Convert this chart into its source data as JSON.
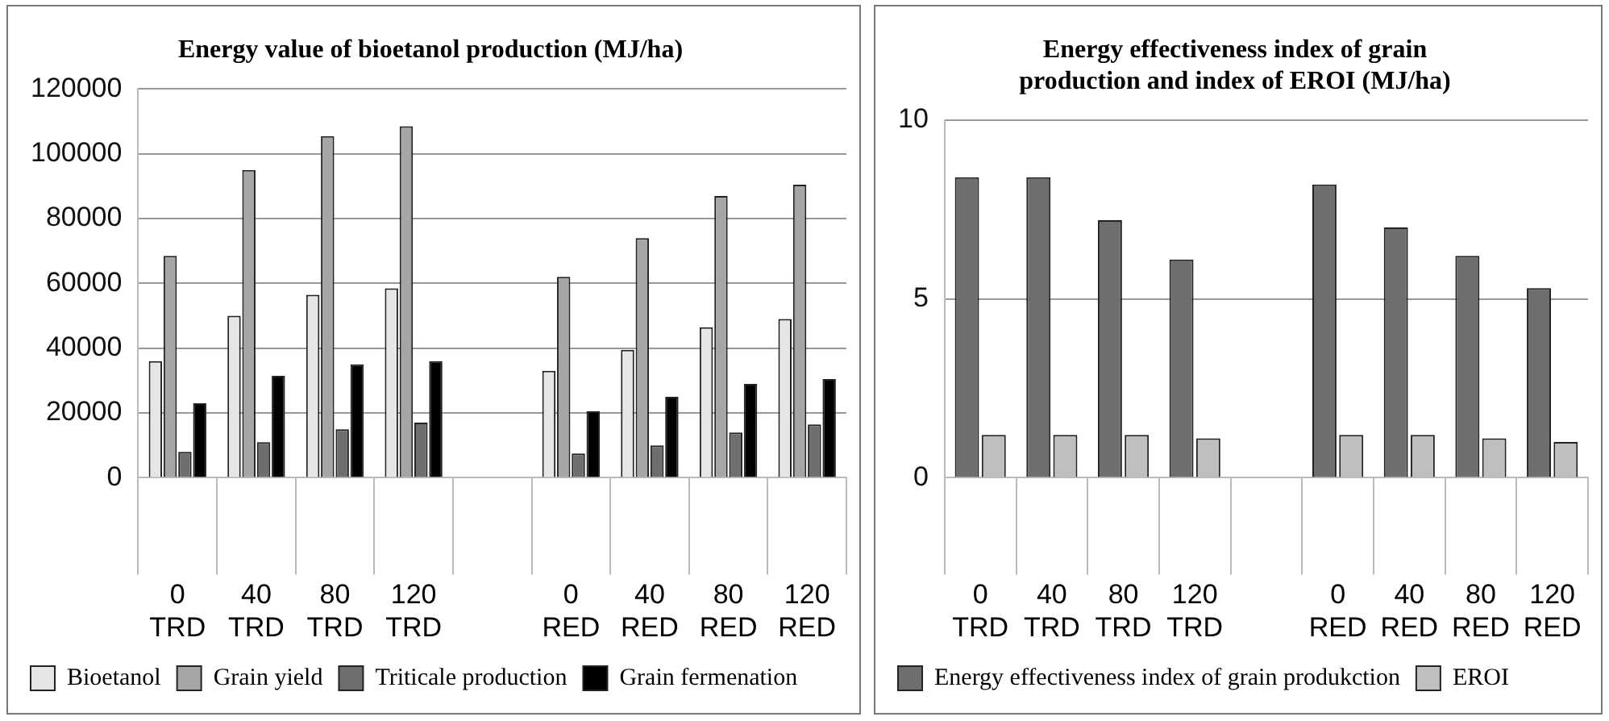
{
  "chart_data": [
    {
      "type": "bar",
      "title": "Energy value of bioetanol production (MJ/ha)",
      "categories": [
        "0 TRD",
        "40 TRD",
        "80 TRD",
        "120 TRD",
        null,
        "0 RED",
        "40 RED",
        "80 RED",
        "120 RED"
      ],
      "series": [
        {
          "name": "Bioetanol",
          "color": "#e6e6e6",
          "values": [
            36000,
            50000,
            56500,
            58500,
            null,
            33000,
            39500,
            46500,
            49000
          ]
        },
        {
          "name": "Grain yield",
          "color": "#a6a6a6",
          "values": [
            68500,
            95000,
            105500,
            108500,
            null,
            62000,
            74000,
            87000,
            90500
          ]
        },
        {
          "name": "Triticale production",
          "color": "#6e6e6e",
          "values": [
            8000,
            11000,
            15000,
            17000,
            null,
            7500,
            10000,
            14000,
            16500
          ]
        },
        {
          "name": "Grain fermenation",
          "color": "#000000",
          "values": [
            23000,
            31500,
            35000,
            36000,
            null,
            20500,
            25000,
            29000,
            30500
          ]
        }
      ],
      "ylim": [
        0,
        120000
      ],
      "yticks": [
        0,
        20000,
        40000,
        60000,
        80000,
        100000,
        120000
      ],
      "grid": "y",
      "legend": "bottom"
    },
    {
      "type": "bar",
      "title": "Energy effectiveness index of grain production and index of EROI (MJ/ha)",
      "categories": [
        "0 TRD",
        "40 TRD",
        "80 TRD",
        "120 TRD",
        null,
        "0 RED",
        "40 RED",
        "80 RED",
        "120 RED"
      ],
      "series": [
        {
          "name": "Energy effectiveness index of grain produkction",
          "color": "#6e6e6e",
          "values": [
            8.4,
            8.4,
            7.2,
            6.1,
            null,
            8.2,
            7.0,
            6.2,
            5.3
          ]
        },
        {
          "name": "EROI",
          "color": "#bfbfbf",
          "values": [
            1.2,
            1.2,
            1.2,
            1.1,
            null,
            1.2,
            1.2,
            1.1,
            1.0
          ]
        }
      ],
      "ylim": [
        0,
        10
      ],
      "yticks": [
        0,
        5,
        10
      ],
      "grid": "y",
      "legend": "bottom"
    }
  ]
}
